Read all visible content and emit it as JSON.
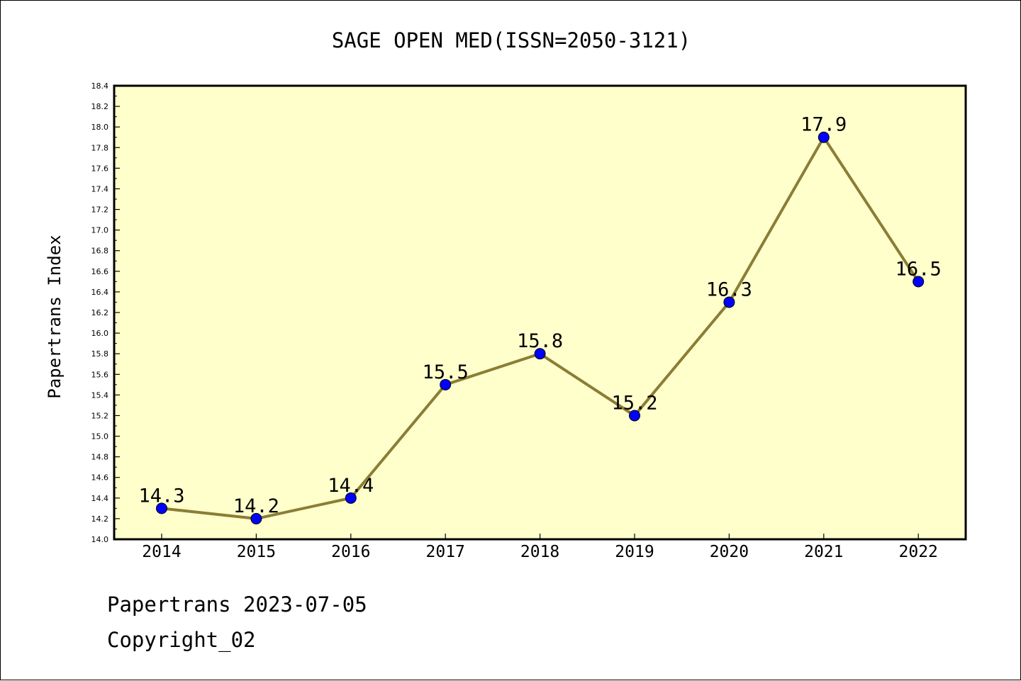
{
  "chart_data": {
    "type": "line",
    "title": "SAGE OPEN MED(ISSN=2050-3121)",
    "xlabel": "",
    "ylabel": "Papertrans Index",
    "categories": [
      "2014",
      "2015",
      "2016",
      "2017",
      "2018",
      "2019",
      "2020",
      "2021",
      "2022"
    ],
    "series": [
      {
        "values": [
          14.3,
          14.2,
          14.4,
          15.5,
          15.8,
          15.2,
          16.3,
          17.9,
          16.5
        ],
        "data_labels": [
          "14.3",
          "14.2",
          "14.4",
          "15.5",
          "15.8",
          "15.2",
          "16.3",
          "17.9",
          "16.5"
        ]
      }
    ],
    "ylim": [
      14.0,
      18.4
    ],
    "yticks": [
      "14.0",
      "14.2",
      "14.4",
      "14.6",
      "14.8",
      "15.0",
      "15.2",
      "15.4",
      "15.6",
      "15.8",
      "16.0",
      "16.2",
      "16.4",
      "16.6",
      "16.8",
      "17.0",
      "17.2",
      "17.4",
      "17.6",
      "17.8",
      "18.0",
      "18.2",
      "18.4"
    ],
    "grid": false,
    "legend": "none",
    "colors": {
      "plot_background": "#ffffcc",
      "line": "#8b7d35",
      "marker": "#0000ff"
    }
  },
  "footer": {
    "date_line": "Papertrans 2023-07-05",
    "copyright": "Copyright_02"
  }
}
